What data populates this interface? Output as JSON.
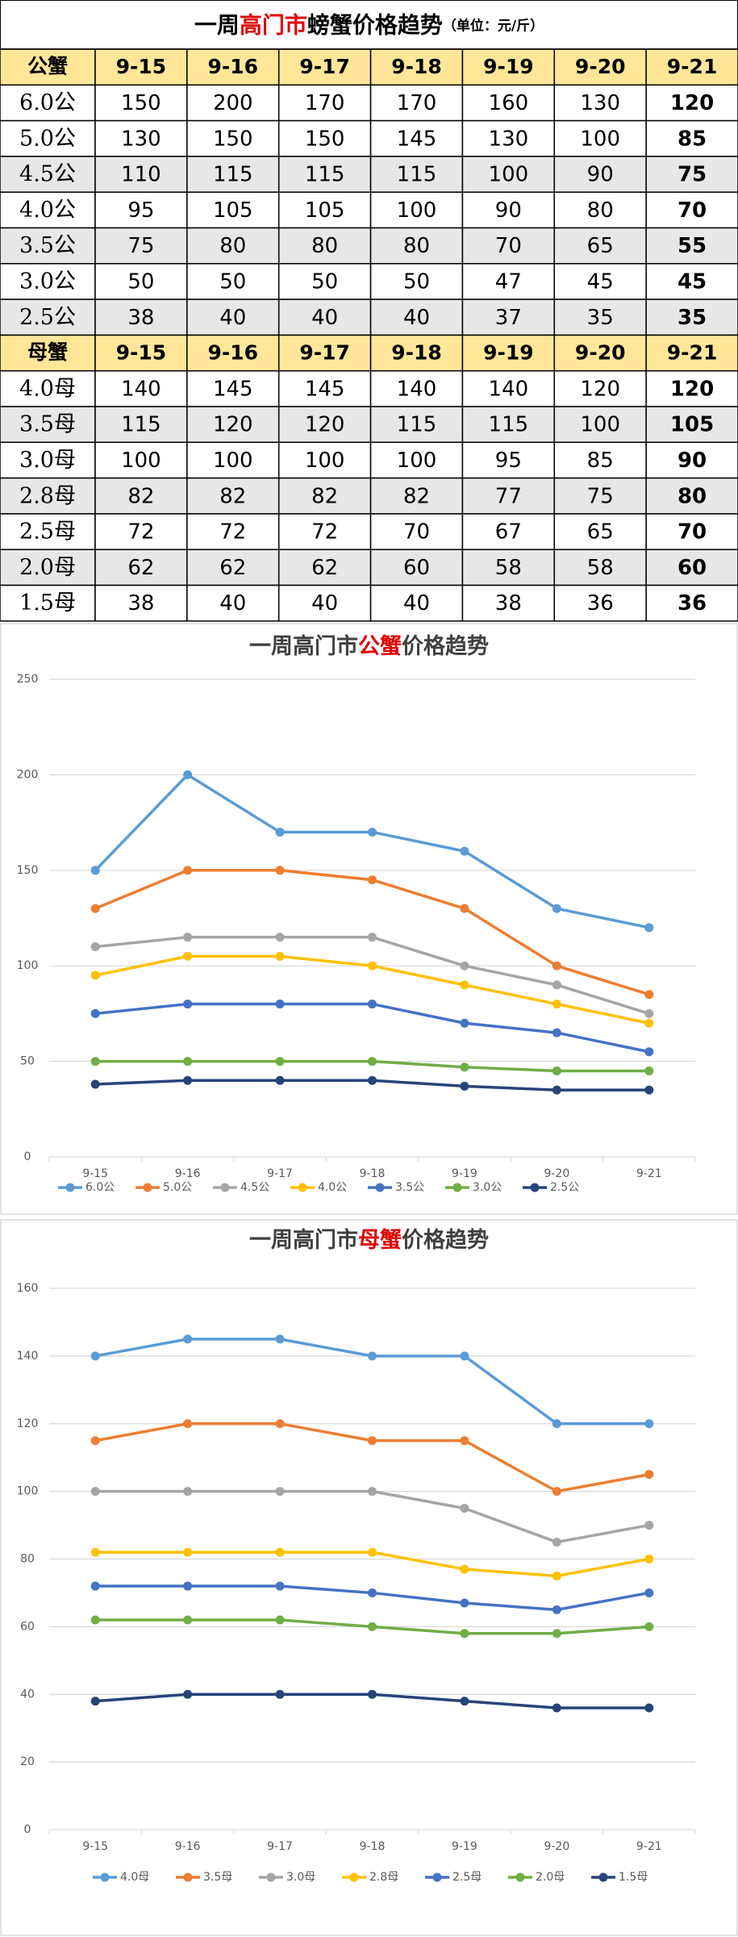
{
  "table": {
    "title": [
      "一周",
      "高门市",
      "螃蟹价格趋势"
    ],
    "unit": "（单位：元/斤）",
    "sections": [
      {
        "header": [
          "公蟹",
          "9-15",
          "9-16",
          "9-17",
          "9-18",
          "9-19",
          "9-20",
          "9-21"
        ],
        "rows": [
          [
            "6.0公",
            150,
            200,
            170,
            170,
            160,
            130,
            120
          ],
          [
            "5.0公",
            130,
            150,
            150,
            145,
            130,
            100,
            85
          ],
          [
            "4.5公",
            110,
            115,
            115,
            115,
            100,
            90,
            75
          ],
          [
            "4.0公",
            95,
            105,
            105,
            100,
            90,
            80,
            70
          ],
          [
            "3.5公",
            75,
            80,
            80,
            80,
            70,
            65,
            55
          ],
          [
            "3.0公",
            50,
            50,
            50,
            50,
            47,
            45,
            45
          ],
          [
            "2.5公",
            38,
            40,
            40,
            40,
            37,
            35,
            35
          ]
        ]
      },
      {
        "header": [
          "母蟹",
          "9-15",
          "9-16",
          "9-17",
          "9-18",
          "9-19",
          "9-20",
          "9-21"
        ],
        "rows": [
          [
            "4.0母",
            140,
            145,
            145,
            140,
            140,
            120,
            120
          ],
          [
            "3.5母",
            115,
            120,
            120,
            115,
            115,
            100,
            105
          ],
          [
            "3.0母",
            100,
            100,
            100,
            100,
            95,
            85,
            90
          ],
          [
            "2.8母",
            82,
            82,
            82,
            82,
            77,
            75,
            80
          ],
          [
            "2.5母",
            72,
            72,
            72,
            70,
            67,
            65,
            70
          ],
          [
            "2.0母",
            62,
            62,
            62,
            60,
            58,
            58,
            60
          ],
          [
            "1.5母",
            38,
            40,
            40,
            40,
            38,
            36,
            36
          ]
        ]
      }
    ]
  },
  "chart_data": [
    {
      "type": "line",
      "title": [
        "一周高门市",
        "公蟹",
        "价格趋势"
      ],
      "categories": [
        "9-15",
        "9-16",
        "9-17",
        "9-18",
        "9-19",
        "9-20",
        "9-21"
      ],
      "ylim": [
        0,
        250
      ],
      "yticks": [
        0,
        50,
        100,
        150,
        200,
        250
      ],
      "grid": true,
      "legend": "bottom",
      "series": [
        {
          "name": "6.0公",
          "color": "#5b9bd5",
          "values": [
            150,
            200,
            170,
            170,
            160,
            130,
            120
          ]
        },
        {
          "name": "5.0公",
          "color": "#ed7d31",
          "values": [
            130,
            150,
            150,
            145,
            130,
            100,
            85
          ]
        },
        {
          "name": "4.5公",
          "color": "#a5a5a5",
          "values": [
            110,
            115,
            115,
            115,
            100,
            90,
            75
          ]
        },
        {
          "name": "4.0公",
          "color": "#ffc000",
          "values": [
            95,
            105,
            105,
            100,
            90,
            80,
            70
          ]
        },
        {
          "name": "3.5公",
          "color": "#4472c4",
          "values": [
            75,
            80,
            80,
            80,
            70,
            65,
            55
          ]
        },
        {
          "name": "3.0公",
          "color": "#70ad47",
          "values": [
            50,
            50,
            50,
            50,
            47,
            45,
            45
          ]
        },
        {
          "name": "2.5公",
          "color": "#264478",
          "values": [
            38,
            40,
            40,
            40,
            37,
            35,
            35
          ]
        }
      ]
    },
    {
      "type": "line",
      "title": [
        "一周高门市",
        "母蟹",
        "价格趋势"
      ],
      "categories": [
        "9-15",
        "9-16",
        "9-17",
        "9-18",
        "9-19",
        "9-20",
        "9-21"
      ],
      "ylim": [
        0,
        160
      ],
      "yticks": [
        0,
        20,
        40,
        60,
        80,
        100,
        120,
        140,
        160
      ],
      "grid": true,
      "legend": "bottom",
      "series": [
        {
          "name": "4.0母",
          "color": "#5b9bd5",
          "values": [
            140,
            145,
            145,
            140,
            140,
            120,
            120
          ]
        },
        {
          "name": "3.5母",
          "color": "#ed7d31",
          "values": [
            115,
            120,
            120,
            115,
            115,
            100,
            105
          ]
        },
        {
          "name": "3.0母",
          "color": "#a5a5a5",
          "values": [
            100,
            100,
            100,
            100,
            95,
            85,
            90
          ]
        },
        {
          "name": "2.8母",
          "color": "#ffc000",
          "values": [
            82,
            82,
            82,
            82,
            77,
            75,
            80
          ]
        },
        {
          "name": "2.5母",
          "color": "#4472c4",
          "values": [
            72,
            72,
            72,
            70,
            67,
            65,
            70
          ]
        },
        {
          "name": "2.0母",
          "color": "#70ad47",
          "values": [
            62,
            62,
            62,
            60,
            58,
            58,
            60
          ]
        },
        {
          "name": "1.5母",
          "color": "#264478",
          "values": [
            38,
            40,
            40,
            40,
            38,
            36,
            36
          ]
        }
      ]
    }
  ]
}
